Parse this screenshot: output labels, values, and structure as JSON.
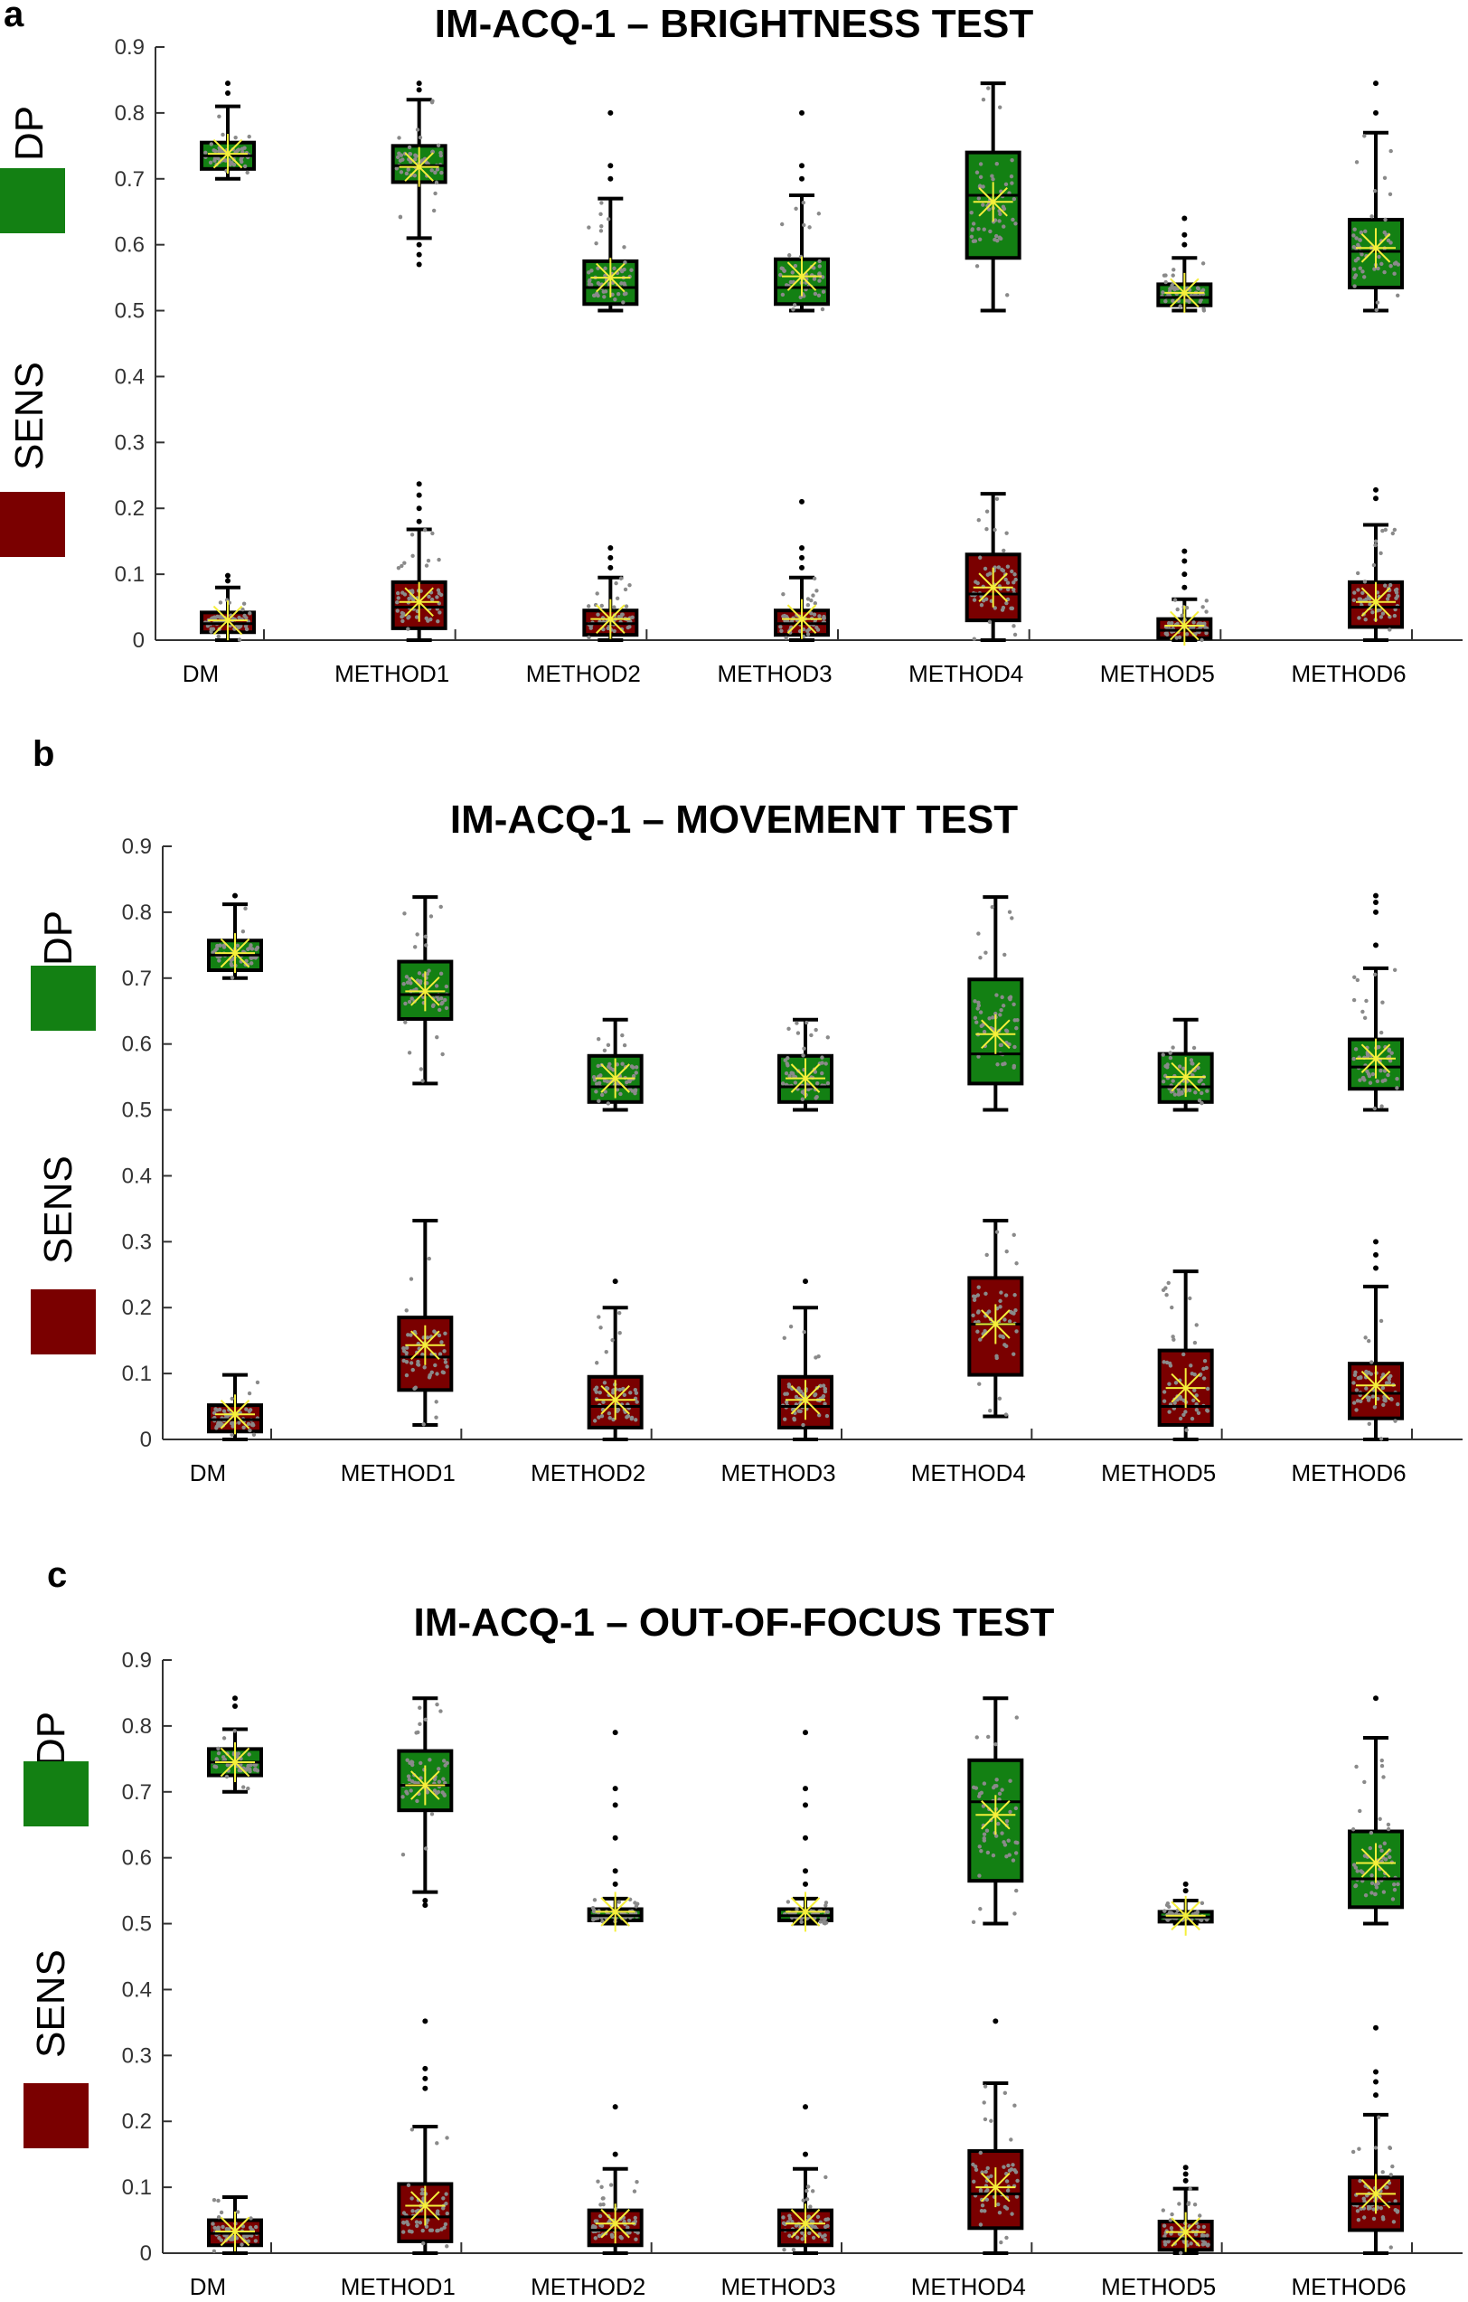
{
  "legend": {
    "dp_label": "DP",
    "sens_label": "SENS",
    "dp_color": "#138013",
    "sens_color": "#7a0000"
  },
  "panels": [
    {
      "letter": "a",
      "title": "IM-ACQ-1 – BRIGHTNESS TEST"
    },
    {
      "letter": "b",
      "title": "IM-ACQ-1 – MOVEMENT TEST"
    },
    {
      "letter": "c",
      "title": "IM-ACQ-1 – OUT-OF-FOCUS TEST"
    }
  ],
  "chart_data": [
    {
      "type": "box",
      "title": "IM-ACQ-1 – BRIGHTNESS TEST",
      "categories": [
        "DM",
        "METHOD1",
        "METHOD2",
        "METHOD3",
        "METHOD4",
        "METHOD5",
        "METHOD6"
      ],
      "ylim": [
        0,
        0.9
      ],
      "yticks": [
        "0",
        "0.1",
        "0.2",
        "0.3",
        "0.4",
        "0.5",
        "0.6",
        "0.7",
        "0.8",
        "0.9"
      ],
      "series": [
        {
          "name": "DP",
          "color": "#138013",
          "boxes": [
            {
              "min": 0.7,
              "q1": 0.715,
              "median": 0.735,
              "q3": 0.755,
              "max": 0.81,
              "mean": 0.738,
              "outliers": [
                0.83,
                0.845
              ]
            },
            {
              "min": 0.61,
              "q1": 0.695,
              "median": 0.72,
              "q3": 0.75,
              "max": 0.82,
              "mean": 0.718,
              "outliers": [
                0.6,
                0.585,
                0.57,
                0.835,
                0.845
              ]
            },
            {
              "min": 0.5,
              "q1": 0.51,
              "median": 0.535,
              "q3": 0.575,
              "max": 0.67,
              "mean": 0.55,
              "outliers": [
                0.7,
                0.72,
                0.8
              ]
            },
            {
              "min": 0.5,
              "q1": 0.51,
              "median": 0.535,
              "q3": 0.578,
              "max": 0.675,
              "mean": 0.552,
              "outliers": [
                0.7,
                0.72,
                0.8
              ]
            },
            {
              "min": 0.5,
              "q1": 0.58,
              "median": 0.675,
              "q3": 0.74,
              "max": 0.845,
              "mean": 0.665,
              "outliers": []
            },
            {
              "min": 0.5,
              "q1": 0.508,
              "median": 0.52,
              "q3": 0.54,
              "max": 0.58,
              "mean": 0.527,
              "outliers": [
                0.6,
                0.615,
                0.64
              ]
            },
            {
              "min": 0.5,
              "q1": 0.535,
              "median": 0.59,
              "q3": 0.638,
              "max": 0.77,
              "mean": 0.595,
              "outliers": [
                0.8,
                0.845
              ]
            }
          ]
        },
        {
          "name": "SENS",
          "color": "#7a0000",
          "boxes": [
            {
              "min": 0.0,
              "q1": 0.012,
              "median": 0.025,
              "q3": 0.042,
              "max": 0.08,
              "mean": 0.03,
              "outliers": [
                0.09,
                0.098
              ]
            },
            {
              "min": 0.0,
              "q1": 0.018,
              "median": 0.05,
              "q3": 0.088,
              "max": 0.168,
              "mean": 0.058,
              "outliers": [
                0.18,
                0.2,
                0.22,
                0.237
              ]
            },
            {
              "min": 0.0,
              "q1": 0.008,
              "median": 0.025,
              "q3": 0.045,
              "max": 0.095,
              "mean": 0.032,
              "outliers": [
                0.11,
                0.125,
                0.14
              ]
            },
            {
              "min": 0.0,
              "q1": 0.008,
              "median": 0.025,
              "q3": 0.045,
              "max": 0.095,
              "mean": 0.032,
              "outliers": [
                0.11,
                0.125,
                0.14,
                0.21
              ]
            },
            {
              "min": 0.0,
              "q1": 0.03,
              "median": 0.07,
              "q3": 0.13,
              "max": 0.222,
              "mean": 0.08,
              "outliers": []
            },
            {
              "min": 0.0,
              "q1": 0.003,
              "median": 0.015,
              "q3": 0.032,
              "max": 0.062,
              "mean": 0.022,
              "outliers": [
                0.08,
                0.1,
                0.12,
                0.135
              ]
            },
            {
              "min": 0.0,
              "q1": 0.02,
              "median": 0.05,
              "q3": 0.088,
              "max": 0.175,
              "mean": 0.058,
              "outliers": [
                0.215,
                0.228
              ]
            }
          ]
        }
      ]
    },
    {
      "type": "box",
      "title": "IM-ACQ-1 – MOVEMENT TEST",
      "categories": [
        "DM",
        "METHOD1",
        "METHOD2",
        "METHOD3",
        "METHOD4",
        "METHOD5",
        "METHOD6"
      ],
      "ylim": [
        0,
        0.9
      ],
      "yticks": [
        "0",
        "0.1",
        "0.2",
        "0.3",
        "0.4",
        "0.5",
        "0.6",
        "0.7",
        "0.8",
        "0.9"
      ],
      "series": [
        {
          "name": "DP",
          "color": "#138013",
          "boxes": [
            {
              "min": 0.7,
              "q1": 0.712,
              "median": 0.735,
              "q3": 0.757,
              "max": 0.812,
              "mean": 0.738,
              "outliers": [
                0.825
              ]
            },
            {
              "min": 0.54,
              "q1": 0.638,
              "median": 0.675,
              "q3": 0.725,
              "max": 0.823,
              "mean": 0.68,
              "outliers": []
            },
            {
              "min": 0.5,
              "q1": 0.512,
              "median": 0.535,
              "q3": 0.582,
              "max": 0.637,
              "mean": 0.548,
              "outliers": []
            },
            {
              "min": 0.5,
              "q1": 0.512,
              "median": 0.535,
              "q3": 0.582,
              "max": 0.637,
              "mean": 0.548,
              "outliers": []
            },
            {
              "min": 0.5,
              "q1": 0.54,
              "median": 0.585,
              "q3": 0.698,
              "max": 0.823,
              "mean": 0.615,
              "outliers": []
            },
            {
              "min": 0.5,
              "q1": 0.512,
              "median": 0.535,
              "q3": 0.585,
              "max": 0.637,
              "mean": 0.55,
              "outliers": []
            },
            {
              "min": 0.5,
              "q1": 0.532,
              "median": 0.565,
              "q3": 0.607,
              "max": 0.715,
              "mean": 0.578,
              "outliers": [
                0.75,
                0.8,
                0.815,
                0.825
              ]
            }
          ]
        },
        {
          "name": "SENS",
          "color": "#7a0000",
          "boxes": [
            {
              "min": 0.0,
              "q1": 0.012,
              "median": 0.03,
              "q3": 0.052,
              "max": 0.098,
              "mean": 0.038,
              "outliers": []
            },
            {
              "min": 0.022,
              "q1": 0.075,
              "median": 0.125,
              "q3": 0.185,
              "max": 0.332,
              "mean": 0.143,
              "outliers": []
            },
            {
              "min": 0.0,
              "q1": 0.018,
              "median": 0.05,
              "q3": 0.095,
              "max": 0.2,
              "mean": 0.06,
              "outliers": [
                0.24
              ]
            },
            {
              "min": 0.0,
              "q1": 0.018,
              "median": 0.05,
              "q3": 0.095,
              "max": 0.2,
              "mean": 0.06,
              "outliers": [
                0.24
              ]
            },
            {
              "min": 0.035,
              "q1": 0.098,
              "median": 0.175,
              "q3": 0.245,
              "max": 0.332,
              "mean": 0.175,
              "outliers": []
            },
            {
              "min": 0.0,
              "q1": 0.022,
              "median": 0.05,
              "q3": 0.135,
              "max": 0.255,
              "mean": 0.078,
              "outliers": []
            },
            {
              "min": 0.0,
              "q1": 0.032,
              "median": 0.07,
              "q3": 0.115,
              "max": 0.232,
              "mean": 0.082,
              "outliers": [
                0.26,
                0.28,
                0.3
              ]
            }
          ]
        }
      ]
    },
    {
      "type": "box",
      "title": "IM-ACQ-1 – OUT-OF-FOCUS TEST",
      "categories": [
        "DM",
        "METHOD1",
        "METHOD2",
        "METHOD3",
        "METHOD4",
        "METHOD5",
        "METHOD6"
      ],
      "ylim": [
        0,
        0.9
      ],
      "yticks": [
        "0",
        "0.1",
        "0.2",
        "0.3",
        "0.4",
        "0.5",
        "0.6",
        "0.7",
        "0.8",
        "0.9"
      ],
      "series": [
        {
          "name": "DP",
          "color": "#138013",
          "boxes": [
            {
              "min": 0.7,
              "q1": 0.725,
              "median": 0.745,
              "q3": 0.765,
              "max": 0.795,
              "mean": 0.745,
              "outliers": [
                0.83,
                0.842
              ]
            },
            {
              "min": 0.548,
              "q1": 0.672,
              "median": 0.71,
              "q3": 0.762,
              "max": 0.842,
              "mean": 0.71,
              "outliers": [
                0.535,
                0.528
              ]
            },
            {
              "min": 0.5,
              "q1": 0.505,
              "median": 0.512,
              "q3": 0.522,
              "max": 0.538,
              "mean": 0.518,
              "outliers": [
                0.56,
                0.58,
                0.63,
                0.68,
                0.705,
                0.79
              ]
            },
            {
              "min": 0.5,
              "q1": 0.505,
              "median": 0.512,
              "q3": 0.522,
              "max": 0.538,
              "mean": 0.518,
              "outliers": [
                0.56,
                0.58,
                0.63,
                0.68,
                0.705,
                0.79
              ]
            },
            {
              "min": 0.5,
              "q1": 0.565,
              "median": 0.685,
              "q3": 0.748,
              "max": 0.842,
              "mean": 0.665,
              "outliers": []
            },
            {
              "min": 0.5,
              "q1": 0.503,
              "median": 0.51,
              "q3": 0.518,
              "max": 0.535,
              "mean": 0.512,
              "outliers": [
                0.55,
                0.56
              ]
            },
            {
              "min": 0.5,
              "q1": 0.525,
              "median": 0.568,
              "q3": 0.64,
              "max": 0.782,
              "mean": 0.592,
              "outliers": [
                0.842
              ]
            }
          ]
        },
        {
          "name": "SENS",
          "color": "#7a0000",
          "boxes": [
            {
              "min": 0.0,
              "q1": 0.012,
              "median": 0.03,
              "q3": 0.05,
              "max": 0.085,
              "mean": 0.033,
              "outliers": []
            },
            {
              "min": 0.0,
              "q1": 0.018,
              "median": 0.055,
              "q3": 0.105,
              "max": 0.192,
              "mean": 0.072,
              "outliers": [
                0.25,
                0.265,
                0.28,
                0.352
              ]
            },
            {
              "min": 0.0,
              "q1": 0.012,
              "median": 0.035,
              "q3": 0.065,
              "max": 0.128,
              "mean": 0.045,
              "outliers": [
                0.15,
                0.222
              ]
            },
            {
              "min": 0.0,
              "q1": 0.012,
              "median": 0.035,
              "q3": 0.065,
              "max": 0.128,
              "mean": 0.045,
              "outliers": [
                0.15,
                0.222
              ]
            },
            {
              "min": 0.0,
              "q1": 0.038,
              "median": 0.09,
              "q3": 0.155,
              "max": 0.258,
              "mean": 0.1,
              "outliers": [
                0.352
              ]
            },
            {
              "min": 0.0,
              "q1": 0.005,
              "median": 0.022,
              "q3": 0.048,
              "max": 0.098,
              "mean": 0.032,
              "outliers": [
                0.11,
                0.12,
                0.13
              ]
            },
            {
              "min": 0.0,
              "q1": 0.035,
              "median": 0.075,
              "q3": 0.115,
              "max": 0.21,
              "mean": 0.09,
              "outliers": [
                0.24,
                0.26,
                0.275,
                0.342
              ]
            }
          ]
        }
      ]
    }
  ]
}
